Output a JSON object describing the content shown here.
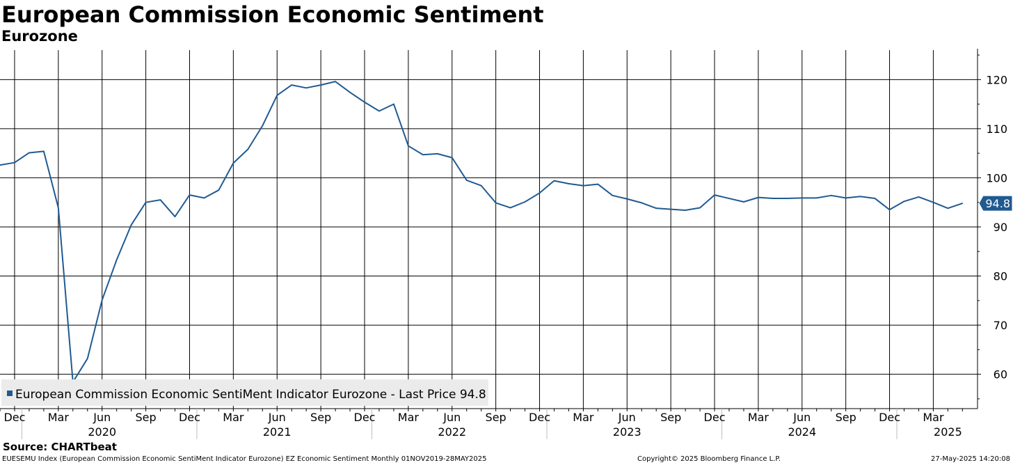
{
  "header": {
    "title": "European Commission Economic Sentiment",
    "subtitle": "Eurozone"
  },
  "chart_data": {
    "type": "line",
    "title": "European Commission Economic Sentiment",
    "subtitle": "Eurozone",
    "xlabel": "",
    "ylabel": "",
    "ylim": [
      53,
      126
    ],
    "yticks": [
      60,
      70,
      80,
      90,
      100,
      110,
      120
    ],
    "grid": true,
    "y_axis_side": "right",
    "x": [
      "Nov 2019",
      "Dec 2019",
      "Jan 2020",
      "Feb 2020",
      "Mar 2020",
      "Apr 2020",
      "May 2020",
      "Jun 2020",
      "Jul 2020",
      "Aug 2020",
      "Sep 2020",
      "Oct 2020",
      "Nov 2020",
      "Dec 2020",
      "Jan 2021",
      "Feb 2021",
      "Mar 2021",
      "Apr 2021",
      "May 2021",
      "Jun 2021",
      "Jul 2021",
      "Aug 2021",
      "Sep 2021",
      "Oct 2021",
      "Nov 2021",
      "Dec 2021",
      "Jan 2022",
      "Feb 2022",
      "Mar 2022",
      "Apr 2022",
      "May 2022",
      "Jun 2022",
      "Jul 2022",
      "Aug 2022",
      "Sep 2022",
      "Oct 2022",
      "Nov 2022",
      "Dec 2022",
      "Jan 2023",
      "Feb 2023",
      "Mar 2023",
      "Apr 2023",
      "May 2023",
      "Jun 2023",
      "Jul 2023",
      "Aug 2023",
      "Sep 2023",
      "Oct 2023",
      "Nov 2023",
      "Dec 2023",
      "Jan 2024",
      "Feb 2024",
      "Mar 2024",
      "Apr 2024",
      "May 2024",
      "Jun 2024",
      "Jul 2024",
      "Aug 2024",
      "Sep 2024",
      "Oct 2024",
      "Nov 2024",
      "Dec 2024",
      "Jan 2025",
      "Feb 2025",
      "Mar 2025",
      "Apr 2025",
      "May 2025"
    ],
    "series": [
      {
        "name": "European Commission Economic SentiMent Indicator Eurozone",
        "color": "#1f5a91",
        "values": [
          102.6,
          103.1,
          105.1,
          105.4,
          93.9,
          58.4,
          63.2,
          75.1,
          83.3,
          90.4,
          95.0,
          95.5,
          92.1,
          96.5,
          95.9,
          97.5,
          103.0,
          105.8,
          110.6,
          116.8,
          118.9,
          118.3,
          118.9,
          119.6,
          117.4,
          115.4,
          113.6,
          115.0,
          106.5,
          104.7,
          104.9,
          104.1,
          99.5,
          98.4,
          94.9,
          93.9,
          95.1,
          96.9,
          99.4,
          98.8,
          98.4,
          98.7,
          96.4,
          95.7,
          94.9,
          93.8,
          93.6,
          93.4,
          93.9,
          96.5,
          95.8,
          95.1,
          96.0,
          95.8,
          95.8,
          95.9,
          95.9,
          96.4,
          95.9,
          96.2,
          95.8,
          93.5,
          95.2,
          96.1,
          95.0,
          93.8,
          94.8
        ]
      }
    ],
    "last_price_label": "94.8",
    "legend": {
      "text": "European Commission Economic SentiMent Indicator Eurozone - Last Price 94.8",
      "position": "bottom-left"
    },
    "x_month_labels": [
      {
        "label": "Dec",
        "index": 1
      },
      {
        "label": "Mar",
        "index": 4
      },
      {
        "label": "Jun",
        "index": 7
      },
      {
        "label": "Sep",
        "index": 10
      },
      {
        "label": "Dec",
        "index": 13
      },
      {
        "label": "Mar",
        "index": 16
      },
      {
        "label": "Jun",
        "index": 19
      },
      {
        "label": "Sep",
        "index": 22
      },
      {
        "label": "Dec",
        "index": 25
      },
      {
        "label": "Mar",
        "index": 28
      },
      {
        "label": "Jun",
        "index": 31
      },
      {
        "label": "Sep",
        "index": 34
      },
      {
        "label": "Dec",
        "index": 37
      },
      {
        "label": "Mar",
        "index": 40
      },
      {
        "label": "Jun",
        "index": 43
      },
      {
        "label": "Sep",
        "index": 46
      },
      {
        "label": "Dec",
        "index": 49
      },
      {
        "label": "Mar",
        "index": 52
      },
      {
        "label": "Jun",
        "index": 55
      },
      {
        "label": "Sep",
        "index": 58
      },
      {
        "label": "Dec",
        "index": 61
      },
      {
        "label": "Mar",
        "index": 64
      }
    ],
    "x_year_labels": [
      {
        "label": "2020",
        "index": 7
      },
      {
        "label": "2021",
        "index": 19
      },
      {
        "label": "2022",
        "index": 31
      },
      {
        "label": "2023",
        "index": 43
      },
      {
        "label": "2024",
        "index": 55
      },
      {
        "label": "2025",
        "index": 65
      }
    ],
    "year_dividers": [
      2,
      14,
      26,
      38,
      50,
      62
    ]
  },
  "footer": {
    "source": "Source: CHARTbeat",
    "description": "EUESEMU Index (European Commission Economic SentiMent Indicator Eurozone) EZ Economic Sentiment  Monthly 01NOV2019-28MAY2025",
    "copyright": "Copyright© 2025 Bloomberg Finance L.P.",
    "timestamp": "27-May-2025 14:20:08"
  }
}
